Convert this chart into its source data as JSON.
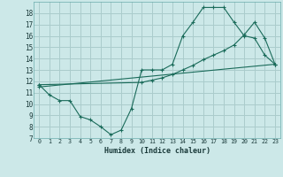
{
  "xlabel": "Humidex (Indice chaleur)",
  "bg_color": "#cce8e8",
  "grid_color": "#aacccc",
  "line_color": "#1a6b5a",
  "xlim": [
    -0.5,
    23.5
  ],
  "ylim": [
    7,
    19
  ],
  "yticks": [
    7,
    8,
    9,
    10,
    11,
    12,
    13,
    14,
    15,
    16,
    17,
    18
  ],
  "xticks": [
    0,
    1,
    2,
    3,
    4,
    5,
    6,
    7,
    8,
    9,
    10,
    11,
    12,
    13,
    14,
    15,
    16,
    17,
    18,
    19,
    20,
    21,
    22,
    23
  ],
  "curve1_x": [
    0,
    1,
    2,
    3,
    4,
    5,
    6,
    7,
    8,
    9,
    10,
    11,
    12,
    13,
    14,
    15,
    16,
    17,
    18,
    19,
    20,
    21,
    22,
    23
  ],
  "curve1_y": [
    11.7,
    10.8,
    10.3,
    10.3,
    8.9,
    8.6,
    8.0,
    7.3,
    7.7,
    9.6,
    13.0,
    13.0,
    13.0,
    13.5,
    16.0,
    17.2,
    18.5,
    18.5,
    18.5,
    17.2,
    16.0,
    15.8,
    14.3,
    13.5
  ],
  "curve2_x": [
    0,
    10,
    11,
    12,
    13,
    14,
    15,
    16,
    17,
    18,
    19,
    20,
    21,
    22,
    23
  ],
  "curve2_y": [
    11.7,
    11.9,
    12.1,
    12.3,
    12.6,
    13.0,
    13.4,
    13.9,
    14.3,
    14.7,
    15.2,
    16.1,
    17.2,
    15.8,
    13.5
  ],
  "curve3_x": [
    0,
    23
  ],
  "curve3_y": [
    11.5,
    13.5
  ]
}
